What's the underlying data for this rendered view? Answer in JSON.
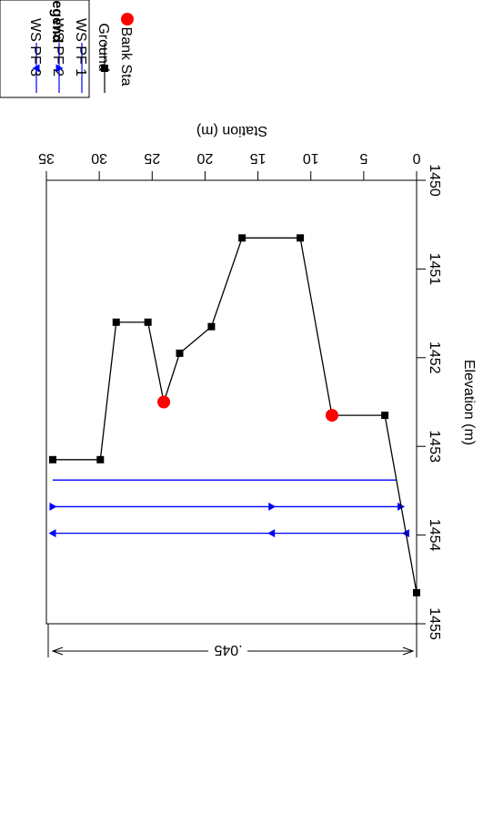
{
  "chart_data": {
    "type": "line",
    "title": "",
    "xlabel": "Station (m)",
    "ylabel": "Elevation (m)",
    "xlim": [
      0,
      35
    ],
    "ylim": [
      1450,
      1455
    ],
    "x_ticks": [
      0,
      5,
      10,
      15,
      20,
      25,
      30,
      35
    ],
    "y_ticks": [
      1450,
      1451,
      1452,
      1453,
      1454,
      1455
    ],
    "grid": false,
    "legend_position": "top-right",
    "legend_title": "Legend",
    "manning_label": ".045",
    "series": [
      {
        "name": "WS PF 3",
        "marker": "triangle-right",
        "color": "#0000ff",
        "x": [
          1.0,
          13.7,
          34.4
        ],
        "y": [
          1453.98,
          1453.98,
          1453.98
        ]
      },
      {
        "name": "WS PF 2",
        "marker": "triangle-left",
        "color": "#0000ff",
        "x": [
          1.5,
          13.7,
          34.4
        ],
        "y": [
          1453.68,
          1453.68,
          1453.68
        ]
      },
      {
        "name": "WS PF 1",
        "marker": "none",
        "color": "#0000ff",
        "x": [
          1.9,
          34.4
        ],
        "y": [
          1453.38,
          1453.38
        ]
      },
      {
        "name": "Ground",
        "marker": "square",
        "color": "#000000",
        "x": [
          0,
          3.0,
          8.0,
          11.0,
          16.5,
          19.4,
          22.4,
          23.9,
          25.4,
          28.4,
          29.9,
          34.4
        ],
        "y": [
          1454.65,
          1452.65,
          1452.65,
          1450.65,
          1450.65,
          1451.65,
          1451.95,
          1452.5,
          1451.6,
          1451.6,
          1453.15,
          1453.15
        ]
      },
      {
        "name": "Bank Sta",
        "marker": "circle",
        "color": "#ff0000",
        "x": [
          8.0,
          23.9
        ],
        "y": [
          1452.65,
          1452.5
        ]
      }
    ]
  }
}
